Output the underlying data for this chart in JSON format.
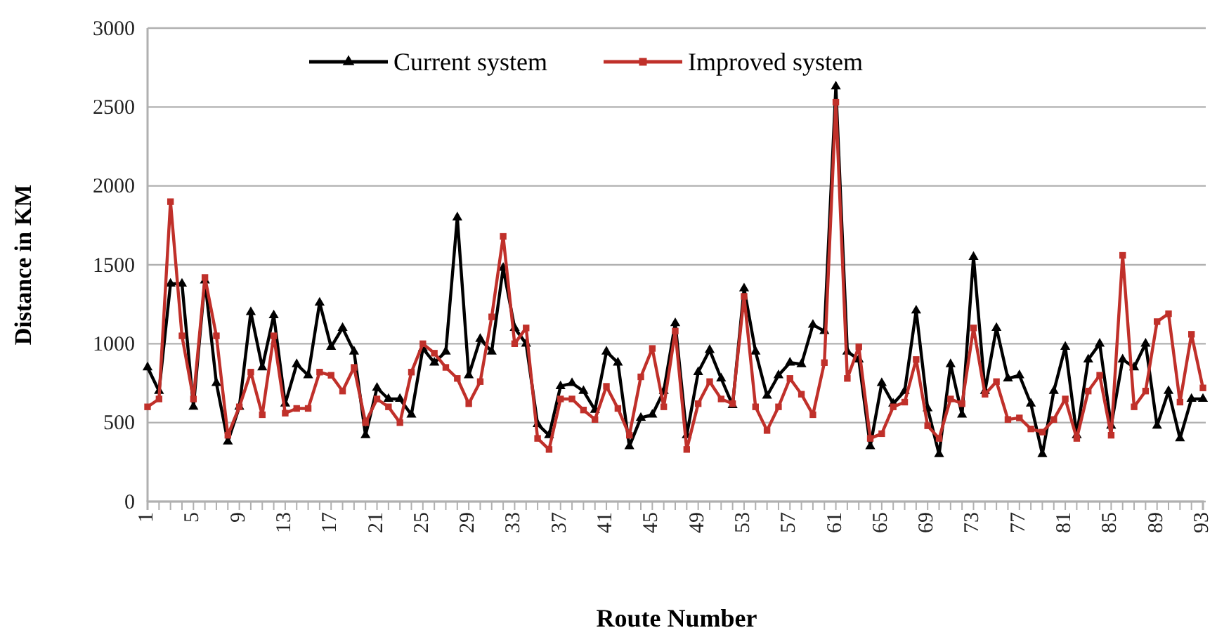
{
  "chart_data": {
    "type": "line",
    "xlabel": "Route Number",
    "ylabel": "Distance in KM",
    "categories": [
      "1",
      null,
      null,
      null,
      "5",
      null,
      null,
      null,
      "9",
      null,
      null,
      null,
      "13",
      null,
      null,
      null,
      "17",
      null,
      null,
      null,
      "21",
      null,
      null,
      null,
      "25",
      null,
      null,
      null,
      "29",
      null,
      null,
      null,
      "33",
      null,
      null,
      null,
      "37",
      null,
      null,
      null,
      "41",
      null,
      null,
      null,
      "45",
      null,
      null,
      null,
      "49",
      null,
      null,
      null,
      "53",
      null,
      null,
      null,
      "57",
      null,
      null,
      null,
      "61",
      null,
      null,
      null,
      "65",
      null,
      null,
      null,
      "69",
      null,
      null,
      null,
      "73",
      null,
      null,
      null,
      "77",
      null,
      null,
      null,
      "81",
      null,
      null,
      null,
      "85",
      null,
      null,
      null,
      "89",
      null,
      null,
      null,
      "93"
    ],
    "series": [
      {
        "name": "Current system",
        "color": "#000000",
        "marker": "triangle",
        "values": [
          850,
          700,
          1380,
          1380,
          600,
          1400,
          750,
          380,
          600,
          1200,
          850,
          1180,
          620,
          870,
          800,
          1260,
          980,
          1100,
          950,
          420,
          720,
          650,
          650,
          550,
          970,
          880,
          950,
          1800,
          800,
          1030,
          950,
          1480,
          1100,
          1000,
          490,
          420,
          730,
          750,
          700,
          580,
          950,
          880,
          350,
          530,
          550,
          700,
          1130,
          420,
          820,
          960,
          780,
          610,
          1350,
          950,
          670,
          800,
          880,
          870,
          1120,
          1080,
          2630,
          950,
          900,
          350,
          750,
          620,
          700,
          1210,
          590,
          300,
          870,
          550,
          1550,
          700,
          1100,
          780,
          800,
          620,
          300,
          700,
          980,
          420,
          900,
          1000,
          480,
          900,
          850,
          1000,
          480,
          700,
          400,
          650,
          650
        ]
      },
      {
        "name": "Improved system",
        "color": "#c0302a",
        "marker": "square",
        "values": [
          600,
          650,
          1900,
          1050,
          650,
          1420,
          1050,
          420,
          600,
          820,
          550,
          1050,
          560,
          590,
          590,
          820,
          800,
          700,
          850,
          500,
          650,
          600,
          500,
          820,
          1000,
          940,
          850,
          780,
          620,
          760,
          1170,
          1680,
          1000,
          1100,
          400,
          330,
          650,
          650,
          580,
          520,
          730,
          590,
          420,
          790,
          970,
          600,
          1080,
          330,
          620,
          760,
          650,
          620,
          1300,
          600,
          450,
          600,
          780,
          680,
          550,
          880,
          2530,
          780,
          980,
          400,
          430,
          600,
          630,
          900,
          480,
          400,
          650,
          620,
          1100,
          680,
          760,
          520,
          530,
          460,
          440,
          520,
          650,
          400,
          700,
          800,
          420,
          1560,
          600,
          700,
          1140,
          1190,
          630,
          1060,
          720
        ]
      }
    ],
    "ylim": [
      0,
      3000
    ],
    "yticks": [
      0,
      500,
      1000,
      1500,
      2000,
      2500,
      3000
    ],
    "grid": "y",
    "legend": "top",
    "line_style": "solid"
  }
}
